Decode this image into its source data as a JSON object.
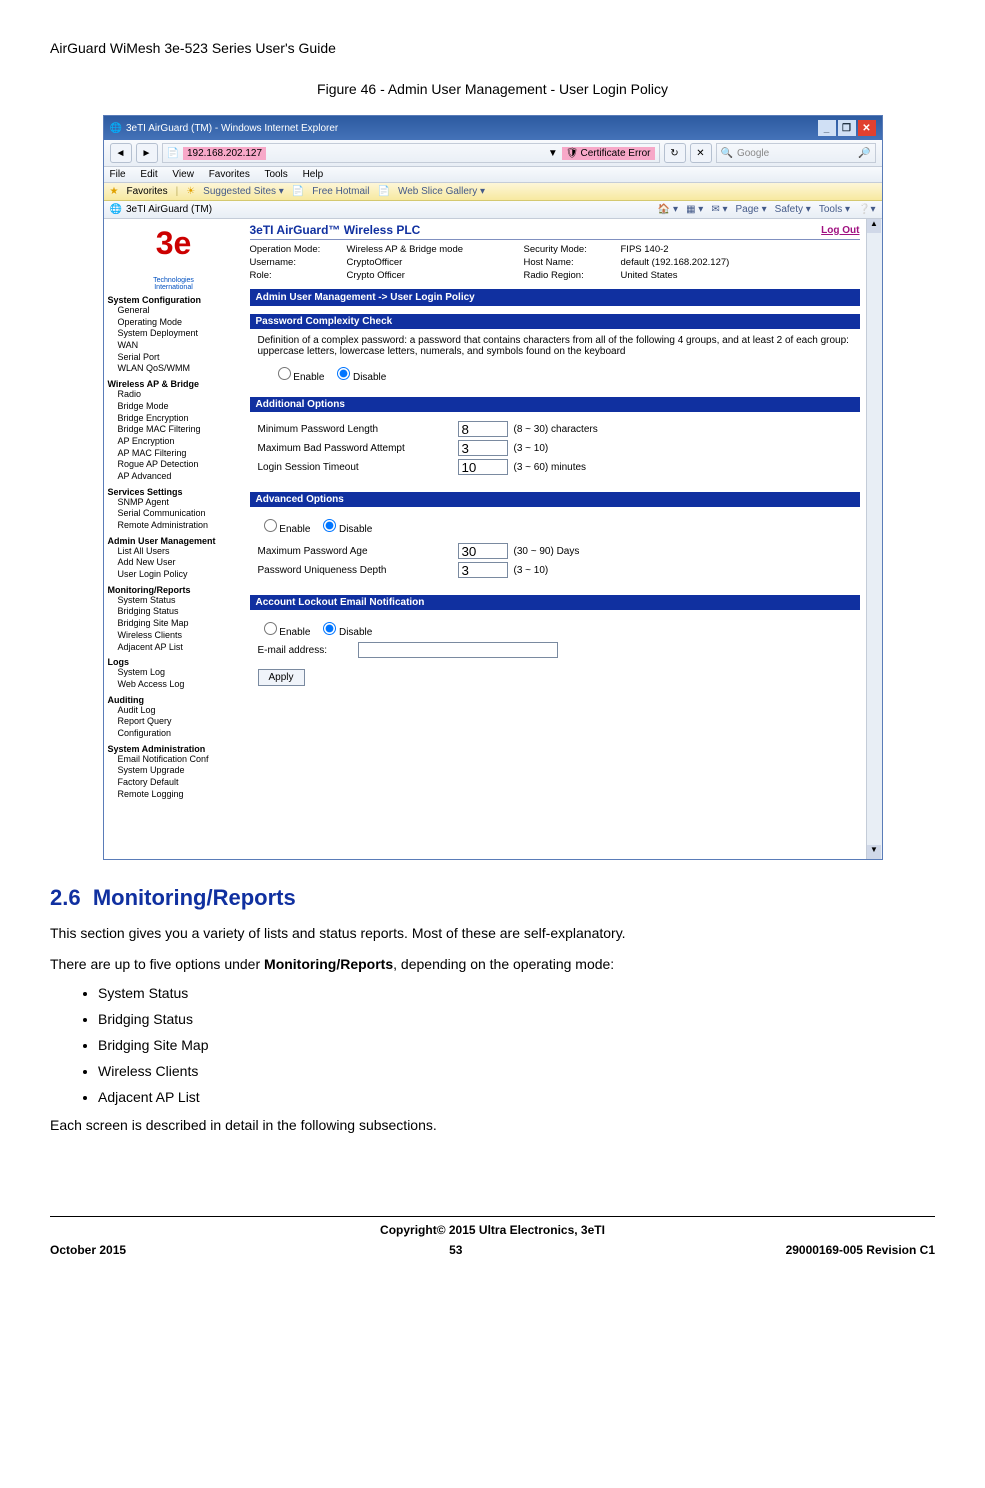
{
  "doc": {
    "header": "AirGuard WiMesh 3e-523 Series User's Guide",
    "figure_caption": "Figure 46 - Admin User Management - User Login Policy",
    "section_number": "2.6",
    "section_title": "Monitoring/Reports",
    "para1": "This section gives you a variety of lists and status reports. Most of these are self-explanatory.",
    "para2_a": "There are up to five options under ",
    "para2_b": "Monitoring/Reports",
    "para2_c": ", depending on the operating mode:",
    "bullets": [
      "System Status",
      "Bridging Status",
      "Bridging Site Map",
      "Wireless Clients",
      "Adjacent AP List"
    ],
    "para3": "Each screen is described in detail in the following subsections.",
    "copyright": "Copyright© 2015 Ultra Electronics, 3eTI",
    "footer_left": "October 2015",
    "footer_center": "53",
    "footer_right": "29000169-005 Revision C1"
  },
  "browser": {
    "title": "3eTI AirGuard (TM) - Windows Internet Explorer",
    "address_ip": "192.168.202.127",
    "cert_error": "Certificate Error",
    "search_placeholder": "Google",
    "menus": [
      "File",
      "Edit",
      "View",
      "Favorites",
      "Tools",
      "Help"
    ],
    "fav_label": "Favorites",
    "fav_suggested": "Suggested Sites",
    "fav_hotmail": "Free Hotmail",
    "fav_slice": "Web Slice Gallery",
    "tab_title": "3eTI AirGuard (TM)",
    "toolbar_items": [
      "Page",
      "Safety",
      "Tools"
    ]
  },
  "app": {
    "logo_text": "3e",
    "logo_tag1": "Technologies",
    "logo_tag2": "International",
    "product_title": "3eTI AirGuard™ Wireless PLC",
    "logout": "Log Out",
    "status": {
      "op_mode_l": "Operation Mode:",
      "op_mode_v": "Wireless AP & Bridge mode",
      "user_l": "Username:",
      "user_v": "CryptoOfficer",
      "role_l": "Role:",
      "role_v": "Crypto Officer",
      "sec_l": "Security Mode:",
      "sec_v": "FIPS 140-2",
      "host_l": "Host Name:",
      "host_v": "default (192.168.202.127)",
      "region_l": "Radio Region:",
      "region_v": "United States"
    },
    "breadcrumb": "Admin User Management -> User Login Policy",
    "sections": {
      "pwd_check": {
        "title": "Password Complexity Check",
        "desc": "Definition of a complex password: a password that contains characters from all of the following 4 groups, and at least 2 of each group: uppercase letters, lowercase letters, numerals, and symbols found on the keyboard",
        "enable": "Enable",
        "disable": "Disable"
      },
      "additional": {
        "title": "Additional Options",
        "min_len_l": "Minimum Password Length",
        "min_len_v": "8",
        "min_len_h": "(8 ~ 30) characters",
        "max_bad_l": "Maximum Bad Password Attempt",
        "max_bad_v": "3",
        "max_bad_h": "(3 ~ 10)",
        "timeout_l": "Login Session Timeout",
        "timeout_v": "10",
        "timeout_h": "(3 ~ 60) minutes"
      },
      "advanced": {
        "title": "Advanced Options",
        "enable": "Enable",
        "disable": "Disable",
        "max_age_l": "Maximum Password Age",
        "max_age_v": "30",
        "max_age_h": "(30 ~ 90) Days",
        "uniq_l": "Password Uniqueness Depth",
        "uniq_v": "3",
        "uniq_h": "(3 ~ 10)"
      },
      "lockout": {
        "title": "Account Lockout Email Notification",
        "enable": "Enable",
        "disable": "Disable",
        "email_l": "E-mail address:"
      },
      "apply": "Apply"
    },
    "nav": [
      {
        "group": "System Configuration",
        "items": [
          "General",
          "Operating Mode",
          "System Deployment",
          "WAN",
          "Serial Port",
          "WLAN QoS/WMM"
        ]
      },
      {
        "group": "Wireless AP & Bridge",
        "items": [
          "Radio",
          "Bridge Mode",
          "Bridge Encryption",
          "Bridge MAC Filtering",
          "AP Encryption",
          "AP MAC Filtering",
          "Rogue AP Detection",
          "AP Advanced"
        ]
      },
      {
        "group": "Services Settings",
        "items": [
          "SNMP Agent",
          "Serial Communication",
          "Remote Administration"
        ]
      },
      {
        "group": "Admin User Management",
        "items": [
          "List All Users",
          "Add New User",
          "User Login Policy"
        ]
      },
      {
        "group": "Monitoring/Reports",
        "items": [
          "System Status",
          "Bridging Status",
          "Bridging Site Map",
          "Wireless Clients",
          "Adjacent AP List"
        ]
      },
      {
        "group": "Logs",
        "items": [
          "System Log",
          "Web Access Log"
        ]
      },
      {
        "group": "Auditing",
        "items": [
          "Audit Log",
          "Report Query",
          "Configuration"
        ]
      },
      {
        "group": "System Administration",
        "items": [
          "Email Notification Conf",
          "System Upgrade",
          "Factory Default",
          "Remote Logging"
        ]
      }
    ]
  },
  "colors": {
    "accent_blue": "#1030a0",
    "ie_title_bg": "#2c5aa0",
    "close_red": "#e04030",
    "pink_highlight": "#f7a8c8"
  }
}
